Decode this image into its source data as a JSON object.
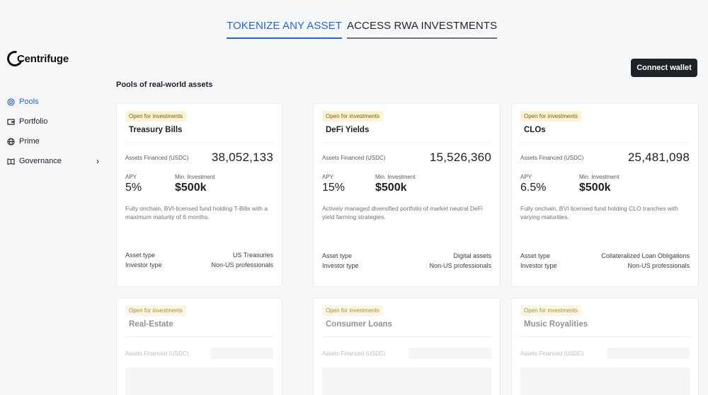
{
  "top_tabs": [
    {
      "label": "TOKENIZE ANY ASSET",
      "active": true
    },
    {
      "label": "ACCESS RWA INVESTMENTS",
      "active": false
    }
  ],
  "logo": {
    "text": "Centrifuge"
  },
  "header": {
    "connect_label": "Connect wallet"
  },
  "sidebar": {
    "items": [
      {
        "label": "Pools",
        "icon": "pools-icon",
        "active": true
      },
      {
        "label": "Portfolio",
        "icon": "portfolio-icon",
        "active": false
      },
      {
        "label": "Prime",
        "icon": "globe-icon",
        "active": false
      },
      {
        "label": "Governance",
        "icon": "book-icon",
        "active": false
      }
    ]
  },
  "main": {
    "section_title": "Pools of real-world assets",
    "pools": [
      {
        "status": "Open for investments",
        "name": "Treasury Bills",
        "assets_financed_label": "Assets Financed (USDC)",
        "assets_financed": "38,052,133",
        "apy_label": "APY",
        "apy": "5%",
        "min_label": "Min. Investment",
        "min": "$500k",
        "description": "Fully onchain, BVI-licensed fund holding T-Bills with a maximum maturity of 6 months.",
        "asset_type_label": "Asset type",
        "asset_type": "US Treasuries",
        "investor_type_label": "Investor type",
        "investor_type": "Non-US professionals"
      },
      {
        "status": "Open for investments",
        "name": "DeFi Yields",
        "assets_financed_label": "Assets Financed (USDC)",
        "assets_financed": "15,526,360",
        "apy_label": "APY",
        "apy": "15%",
        "min_label": "Min. Investment",
        "min": "$500k",
        "description": "Actively managed diversified portfolio of market neutral DeFi yield farming strategies.",
        "asset_type_label": "Asset type",
        "asset_type": "Digital assets",
        "investor_type_label": "Investor type",
        "investor_type": "Non-US professionals"
      },
      {
        "status": "Open for investments",
        "name": "CLOs",
        "assets_financed_label": "Assets Financed (USDC)",
        "assets_financed": "25,481,098",
        "apy_label": "APY",
        "apy": "6.5%",
        "min_label": "Min. Investment",
        "min": "$500k",
        "description": "Fully onchain, BVI licensed fund holding CLO tranches with varying maturities.",
        "asset_type_label": "Asset type",
        "asset_type": "Collateralized Loan Obligations",
        "investor_type_label": "Investor type",
        "investor_type": "Non-US professionals"
      },
      {
        "status": "Open for investments",
        "name": "Real-Estate",
        "assets_financed_label": "Assets Financed (USDC)"
      },
      {
        "status": "Open for investments",
        "name": "Consumer Loans",
        "assets_financed_label": "Assets Financed (USDC)"
      },
      {
        "status": "Open for investments",
        "name": "Music Royalities",
        "assets_financed_label": "Assets Financed (USDC)"
      }
    ]
  },
  "colors": {
    "accent": "#2762e0",
    "badge_bg": "#fcf2d4",
    "button_bg": "#1f2329"
  }
}
